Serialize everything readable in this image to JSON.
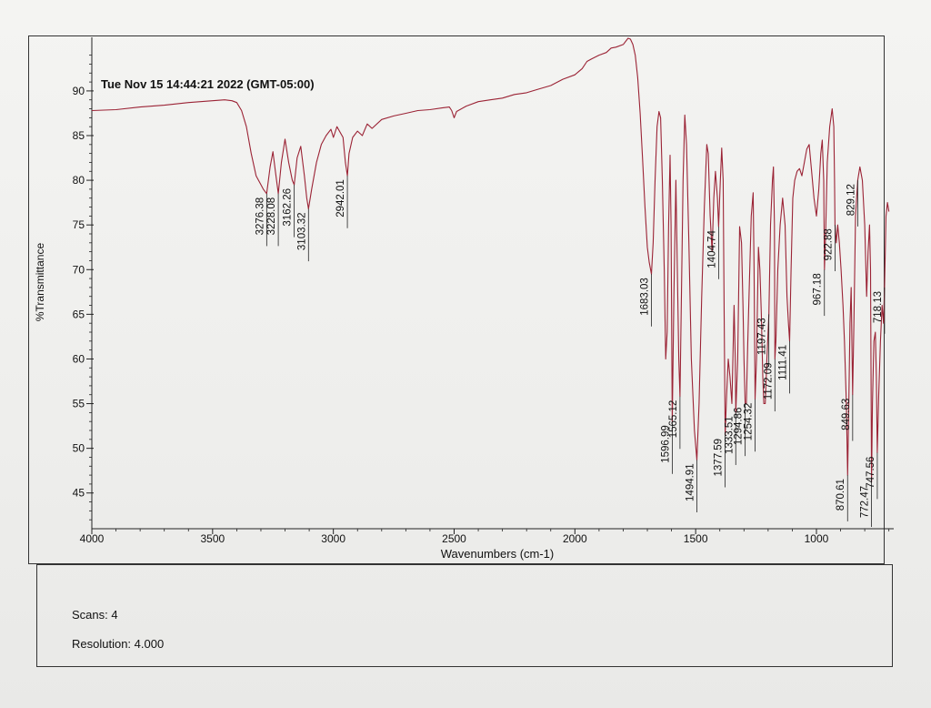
{
  "chart_data": {
    "type": "line",
    "timestamp": "Tue Nov 15 14:44:21 2022 (GMT-05:00)",
    "xlabel": "Wavenumbers (cm-1)",
    "ylabel": "%Transmittance",
    "xlim": [
      4000,
      680
    ],
    "ylim": [
      41,
      96
    ],
    "x_ticks": [
      "4000",
      "3500",
      "3000",
      "2500",
      "2000",
      "1500",
      "1000"
    ],
    "x_tick_values": [
      4000,
      3500,
      3000,
      2500,
      2000,
      1500,
      1000
    ],
    "y_ticks": [
      "45",
      "50",
      "55",
      "60",
      "65",
      "70",
      "75",
      "80",
      "85",
      "90"
    ],
    "y_tick_values": [
      45,
      50,
      55,
      60,
      65,
      70,
      75,
      80,
      85,
      90
    ],
    "line_color": "#9b2335",
    "series": [
      {
        "points": [
          [
            4000,
            87.8
          ],
          [
            3900,
            87.9
          ],
          [
            3800,
            88.2
          ],
          [
            3700,
            88.4
          ],
          [
            3600,
            88.7
          ],
          [
            3500,
            88.9
          ],
          [
            3450,
            89.0
          ],
          [
            3420,
            88.9
          ],
          [
            3400,
            88.7
          ],
          [
            3380,
            87.8
          ],
          [
            3360,
            86.0
          ],
          [
            3340,
            83.0
          ],
          [
            3320,
            80.5
          ],
          [
            3300,
            79.5
          ],
          [
            3290,
            79.0
          ],
          [
            3276,
            78.5
          ],
          [
            3262,
            81.5
          ],
          [
            3250,
            83.2
          ],
          [
            3240,
            81.0
          ],
          [
            3228,
            78.5
          ],
          [
            3215,
            82.0
          ],
          [
            3200,
            84.6
          ],
          [
            3185,
            82.0
          ],
          [
            3170,
            80.0
          ],
          [
            3162,
            79.5
          ],
          [
            3150,
            82.5
          ],
          [
            3135,
            83.8
          ],
          [
            3120,
            80.5
          ],
          [
            3110,
            78.0
          ],
          [
            3103,
            76.8
          ],
          [
            3090,
            79.0
          ],
          [
            3070,
            82.0
          ],
          [
            3050,
            84.0
          ],
          [
            3030,
            85.0
          ],
          [
            3010,
            85.7
          ],
          [
            3000,
            84.8
          ],
          [
            2985,
            86.0
          ],
          [
            2960,
            84.8
          ],
          [
            2950,
            82.0
          ],
          [
            2942,
            80.5
          ],
          [
            2935,
            83.0
          ],
          [
            2920,
            84.8
          ],
          [
            2900,
            85.5
          ],
          [
            2880,
            85.0
          ],
          [
            2860,
            86.3
          ],
          [
            2840,
            85.8
          ],
          [
            2800,
            86.8
          ],
          [
            2750,
            87.2
          ],
          [
            2700,
            87.5
          ],
          [
            2650,
            87.8
          ],
          [
            2600,
            87.9
          ],
          [
            2550,
            88.1
          ],
          [
            2520,
            88.2
          ],
          [
            2510,
            87.8
          ],
          [
            2500,
            87.0
          ],
          [
            2490,
            87.7
          ],
          [
            2450,
            88.3
          ],
          [
            2400,
            88.8
          ],
          [
            2350,
            89.0
          ],
          [
            2300,
            89.2
          ],
          [
            2250,
            89.6
          ],
          [
            2200,
            89.8
          ],
          [
            2150,
            90.2
          ],
          [
            2100,
            90.6
          ],
          [
            2050,
            91.3
          ],
          [
            2000,
            91.8
          ],
          [
            1970,
            92.5
          ],
          [
            1950,
            93.3
          ],
          [
            1930,
            93.6
          ],
          [
            1900,
            94.0
          ],
          [
            1870,
            94.3
          ],
          [
            1850,
            94.8
          ],
          [
            1830,
            94.9
          ],
          [
            1800,
            95.2
          ],
          [
            1780,
            95.9
          ],
          [
            1770,
            95.8
          ],
          [
            1760,
            95.2
          ],
          [
            1750,
            94.0
          ],
          [
            1740,
            91.5
          ],
          [
            1730,
            87.5
          ],
          [
            1720,
            82.5
          ],
          [
            1710,
            77.0
          ],
          [
            1700,
            72.5
          ],
          [
            1692,
            70.8
          ],
          [
            1683,
            69.5
          ],
          [
            1676,
            73.0
          ],
          [
            1668,
            80.0
          ],
          [
            1660,
            86.0
          ],
          [
            1652,
            87.7
          ],
          [
            1645,
            87.0
          ],
          [
            1638,
            80.0
          ],
          [
            1630,
            70.0
          ],
          [
            1624,
            60.0
          ],
          [
            1618,
            63.0
          ],
          [
            1612,
            75.0
          ],
          [
            1606,
            82.8
          ],
          [
            1602,
            75.0
          ],
          [
            1597,
            53.0
          ],
          [
            1590,
            67.0
          ],
          [
            1582,
            80.0
          ],
          [
            1576,
            70.0
          ],
          [
            1570,
            60.0
          ],
          [
            1565,
            55.8
          ],
          [
            1560,
            65.0
          ],
          [
            1552,
            80.0
          ],
          [
            1545,
            87.3
          ],
          [
            1538,
            84.0
          ],
          [
            1528,
            73.0
          ],
          [
            1518,
            60.0
          ],
          [
            1505,
            52.0
          ],
          [
            1495,
            48.7
          ],
          [
            1486,
            55.0
          ],
          [
            1475,
            67.0
          ],
          [
            1464,
            77.0
          ],
          [
            1454,
            84.0
          ],
          [
            1448,
            83.0
          ],
          [
            1440,
            76.0
          ],
          [
            1432,
            72.0
          ],
          [
            1425,
            78.0
          ],
          [
            1418,
            81.0
          ],
          [
            1410,
            78.0
          ],
          [
            1405,
            74.8
          ],
          [
            1398,
            80.0
          ],
          [
            1392,
            83.6
          ],
          [
            1386,
            80.0
          ],
          [
            1382,
            65.0
          ],
          [
            1378,
            51.5
          ],
          [
            1372,
            56.0
          ],
          [
            1365,
            60.0
          ],
          [
            1358,
            58.0
          ],
          [
            1350,
            55.0
          ],
          [
            1346,
            60.0
          ],
          [
            1341,
            66.0
          ],
          [
            1336,
            60.0
          ],
          [
            1334,
            54.0
          ],
          [
            1326,
            60.0
          ],
          [
            1318,
            74.8
          ],
          [
            1310,
            73.0
          ],
          [
            1304,
            66.0
          ],
          [
            1300,
            60.0
          ],
          [
            1295,
            55.0
          ],
          [
            1290,
            55.0
          ],
          [
            1284,
            62.0
          ],
          [
            1278,
            68.0
          ],
          [
            1270,
            76.0
          ],
          [
            1262,
            78.6
          ],
          [
            1258,
            70.0
          ],
          [
            1254,
            55.5
          ],
          [
            1248,
            60.0
          ],
          [
            1240,
            72.5
          ],
          [
            1234,
            70.0
          ],
          [
            1228,
            65.0
          ],
          [
            1222,
            58.0
          ],
          [
            1218,
            55.0
          ],
          [
            1212,
            55.0
          ],
          [
            1205,
            60.0
          ],
          [
            1197,
            65.0
          ],
          [
            1190,
            75.0
          ],
          [
            1182,
            80.0
          ],
          [
            1178,
            81.5
          ],
          [
            1174,
            75.0
          ],
          [
            1172,
            60.0
          ],
          [
            1168,
            62.0
          ],
          [
            1160,
            70.0
          ],
          [
            1150,
            75.0
          ],
          [
            1140,
            78.0
          ],
          [
            1130,
            75.0
          ],
          [
            1122,
            67.0
          ],
          [
            1116,
            64.0
          ],
          [
            1111,
            62.0
          ],
          [
            1105,
            70.0
          ],
          [
            1098,
            78.0
          ],
          [
            1090,
            80.0
          ],
          [
            1080,
            81.0
          ],
          [
            1070,
            81.3
          ],
          [
            1060,
            80.5
          ],
          [
            1050,
            82.0
          ],
          [
            1040,
            83.5
          ],
          [
            1030,
            84.0
          ],
          [
            1020,
            81.0
          ],
          [
            1010,
            78.0
          ],
          [
            1000,
            76.0
          ],
          [
            990,
            79.0
          ],
          [
            982,
            83.0
          ],
          [
            976,
            84.5
          ],
          [
            970,
            80.0
          ],
          [
            967,
            70.0
          ],
          [
            962,
            74.0
          ],
          [
            955,
            82.0
          ],
          [
            945,
            86.0
          ],
          [
            935,
            88.0
          ],
          [
            928,
            86.0
          ],
          [
            925,
            80.0
          ],
          [
            923,
            75.0
          ],
          [
            918,
            73.0
          ],
          [
            912,
            75.0
          ],
          [
            905,
            73.0
          ],
          [
            898,
            70.0
          ],
          [
            890,
            66.0
          ],
          [
            884,
            62.0
          ],
          [
            876,
            55.0
          ],
          [
            871,
            47.0
          ],
          [
            866,
            55.0
          ],
          [
            861,
            64.0
          ],
          [
            856,
            68.0
          ],
          [
            850,
            56.0
          ],
          [
            845,
            64.0
          ],
          [
            838,
            76.0
          ],
          [
            829,
            80.0
          ],
          [
            820,
            81.5
          ],
          [
            810,
            80.0
          ],
          [
            800,
            75.0
          ],
          [
            792,
            67.0
          ],
          [
            786,
            72.0
          ],
          [
            780,
            75.0
          ],
          [
            776,
            70.0
          ],
          [
            772,
            46.2
          ],
          [
            768,
            55.0
          ],
          [
            762,
            62.0
          ],
          [
            756,
            63.0
          ],
          [
            752,
            58.0
          ],
          [
            748,
            49.5
          ],
          [
            742,
            56.0
          ],
          [
            735,
            62.0
          ],
          [
            728,
            66.0
          ],
          [
            722,
            64.0
          ],
          [
            718,
            68.0
          ],
          [
            712,
            76.0
          ],
          [
            706,
            77.5
          ],
          [
            700,
            76.5
          ]
        ]
      }
    ],
    "annotations": [
      {
        "label": "3276.38",
        "x": 3276,
        "y": 78.5
      },
      {
        "label": "3228.08",
        "x": 3228,
        "y": 78.5
      },
      {
        "label": "3162.26",
        "x": 3162,
        "y": 79.5
      },
      {
        "label": "3103.32",
        "x": 3103,
        "y": 76.8
      },
      {
        "label": "2942.01",
        "x": 2942,
        "y": 80.5
      },
      {
        "label": "1683.03",
        "x": 1683,
        "y": 69.5
      },
      {
        "label": "1596.99",
        "x": 1597,
        "y": 53.0
      },
      {
        "label": "1565.12",
        "x": 1565,
        "y": 55.8
      },
      {
        "label": "1494.91",
        "x": 1495,
        "y": 48.7
      },
      {
        "label": "1404.74",
        "x": 1405,
        "y": 74.8
      },
      {
        "label": "1377.59",
        "x": 1378,
        "y": 51.5
      },
      {
        "label": "1333.51",
        "x": 1334,
        "y": 54.0
      },
      {
        "label": "1294.86",
        "x": 1295,
        "y": 55.0
      },
      {
        "label": "1254.32",
        "x": 1254,
        "y": 55.5
      },
      {
        "label": "1197.43",
        "x": 1197,
        "y": 65.0
      },
      {
        "label": "1172.09",
        "x": 1172,
        "y": 60.0
      },
      {
        "label": "1111.41",
        "x": 1111,
        "y": 62.0
      },
      {
        "label": "967.18",
        "x": 967,
        "y": 70.0
      },
      {
        "label": "922.88",
        "x": 923,
        "y": 75.0
      },
      {
        "label": "870.61",
        "x": 871,
        "y": 47.0
      },
      {
        "label": "849.63",
        "x": 850,
        "y": 56.0
      },
      {
        "label": "829.12",
        "x": 829,
        "y": 80.0
      },
      {
        "label": "772.47",
        "x": 772,
        "y": 46.2
      },
      {
        "label": "747.56",
        "x": 748,
        "y": 49.5
      },
      {
        "label": "718.13",
        "x": 718,
        "y": 68.0
      }
    ]
  },
  "footer": {
    "scans": "Scans: 4",
    "resolution": "Resolution:  4.000"
  }
}
